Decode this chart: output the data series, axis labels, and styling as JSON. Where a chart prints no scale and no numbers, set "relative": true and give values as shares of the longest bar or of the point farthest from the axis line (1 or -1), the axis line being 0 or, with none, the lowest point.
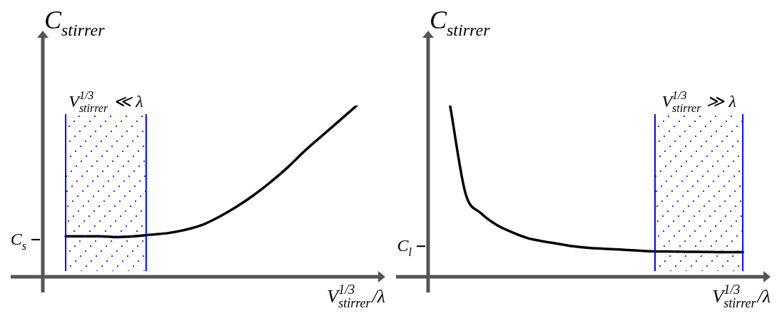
{
  "chart_data": [
    {
      "type": "line",
      "relative": true,
      "ylabel": "C$_{stirrer}$",
      "xlabel": "V$^{1/3}$$_{stirrer}$/λ",
      "categories": [
        null,
        null,
        null,
        null,
        null,
        null,
        null,
        null,
        null,
        null,
        null,
        null,
        null,
        null,
        null,
        null,
        null,
        null
      ],
      "series": [
        {
          "color": "#000000",
          "values": [
            0.21,
            0.21,
            0.21,
            0.205,
            0.21,
            0.22,
            0.23,
            0.25,
            0.28,
            0.33,
            0.39,
            0.46,
            0.54,
            0.63,
            0.73,
            0.82,
            0.91,
            1.0
          ]
        }
      ],
      "annotations": [
        "V$^{1/3}$$_{stirrer}$ ≪ λ",
        "C$_{s}$"
      ]
    },
    {
      "type": "line",
      "relative": true,
      "ylabel": "C$_{stirrer}$",
      "xlabel": "V$^{1/3}$$_{stirrer}$/λ",
      "categories": [
        null,
        null,
        null,
        null,
        null,
        null,
        null,
        null,
        null,
        null,
        null,
        null,
        null,
        null,
        null,
        null,
        null,
        null,
        null,
        null
      ],
      "series": [
        {
          "color": "#000000",
          "values": [
            1.0,
            0.47,
            0.35,
            0.28,
            0.235,
            0.2,
            0.18,
            0.165,
            0.15,
            0.14,
            0.135,
            0.13,
            0.125,
            0.12,
            0.118,
            0.117,
            0.116,
            0.115,
            0.114,
            0.114
          ]
        }
      ],
      "annotations": [
        "V$^{1/3}$$_{stirrer}$ ≫ λ",
        "C$_{l}$"
      ]
    }
  ]
}
